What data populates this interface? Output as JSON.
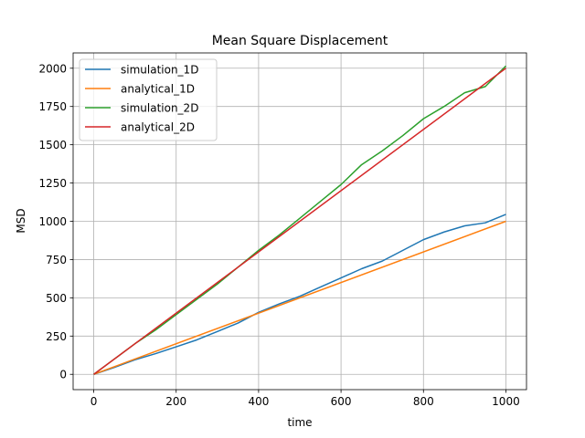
{
  "chart_data": {
    "type": "line",
    "title": "Mean Square Displacement",
    "xlabel": "time",
    "ylabel": "MSD",
    "xlim": [
      -50,
      1050
    ],
    "ylim": [
      -100,
      2100
    ],
    "xticks": [
      0,
      200,
      400,
      600,
      800,
      1000
    ],
    "xtick_labels": [
      "0",
      "200",
      "400",
      "600",
      "800",
      "1000"
    ],
    "yticks": [
      0,
      250,
      500,
      750,
      1000,
      1250,
      1500,
      1750,
      2000
    ],
    "ytick_labels": [
      "0",
      "250",
      "500",
      "750",
      "1000",
      "1250",
      "1500",
      "1750",
      "2000"
    ],
    "grid": true,
    "legend_position": "top-left",
    "series": [
      {
        "name": "simulation_1D",
        "color": "#1f77b4",
        "x": [
          0,
          50,
          100,
          150,
          200,
          250,
          300,
          350,
          400,
          450,
          500,
          550,
          600,
          650,
          700,
          750,
          800,
          850,
          900,
          950,
          1000
        ],
        "y": [
          0,
          45,
          95,
          135,
          180,
          225,
          280,
          335,
          405,
          460,
          510,
          570,
          630,
          690,
          740,
          810,
          880,
          930,
          970,
          990,
          1045
        ]
      },
      {
        "name": "analytical_1D",
        "color": "#ff7f0e",
        "x": [
          0,
          1000
        ],
        "y": [
          0,
          1000
        ]
      },
      {
        "name": "simulation_2D",
        "color": "#2ca02c",
        "x": [
          0,
          50,
          100,
          150,
          200,
          250,
          300,
          350,
          400,
          450,
          500,
          550,
          600,
          650,
          700,
          750,
          800,
          850,
          900,
          950,
          1000
        ],
        "y": [
          0,
          100,
          200,
          290,
          390,
          490,
          590,
          700,
          810,
          910,
          1020,
          1130,
          1240,
          1370,
          1460,
          1560,
          1670,
          1750,
          1840,
          1880,
          2015
        ]
      },
      {
        "name": "analytical_2D",
        "color": "#d62728",
        "x": [
          0,
          1000
        ],
        "y": [
          0,
          2000
        ]
      }
    ]
  }
}
